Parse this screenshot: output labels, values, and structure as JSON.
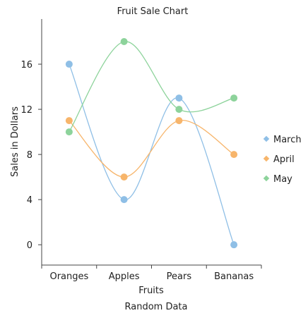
{
  "chart_data": {
    "type": "line",
    "title": "Fruit Sale Chart",
    "subtitle": "Random Data",
    "xlabel": "Fruits",
    "ylabel": "Sales in Dollars",
    "categories": [
      "Oranges",
      "Apples",
      "Pears",
      "Bananas"
    ],
    "ylim": [
      -1.8,
      20
    ],
    "yticks": [
      0,
      4,
      8,
      12,
      16
    ],
    "grid": false,
    "smooth": true,
    "legend_position": "right",
    "series": [
      {
        "name": "March",
        "values": [
          16,
          4,
          13,
          0
        ],
        "color": "#8fbfe6"
      },
      {
        "name": "April",
        "values": [
          11,
          6,
          11,
          8
        ],
        "color": "#f7b56b"
      },
      {
        "name": "May",
        "values": [
          10,
          18,
          12,
          13
        ],
        "color": "#8dd39b"
      }
    ]
  }
}
